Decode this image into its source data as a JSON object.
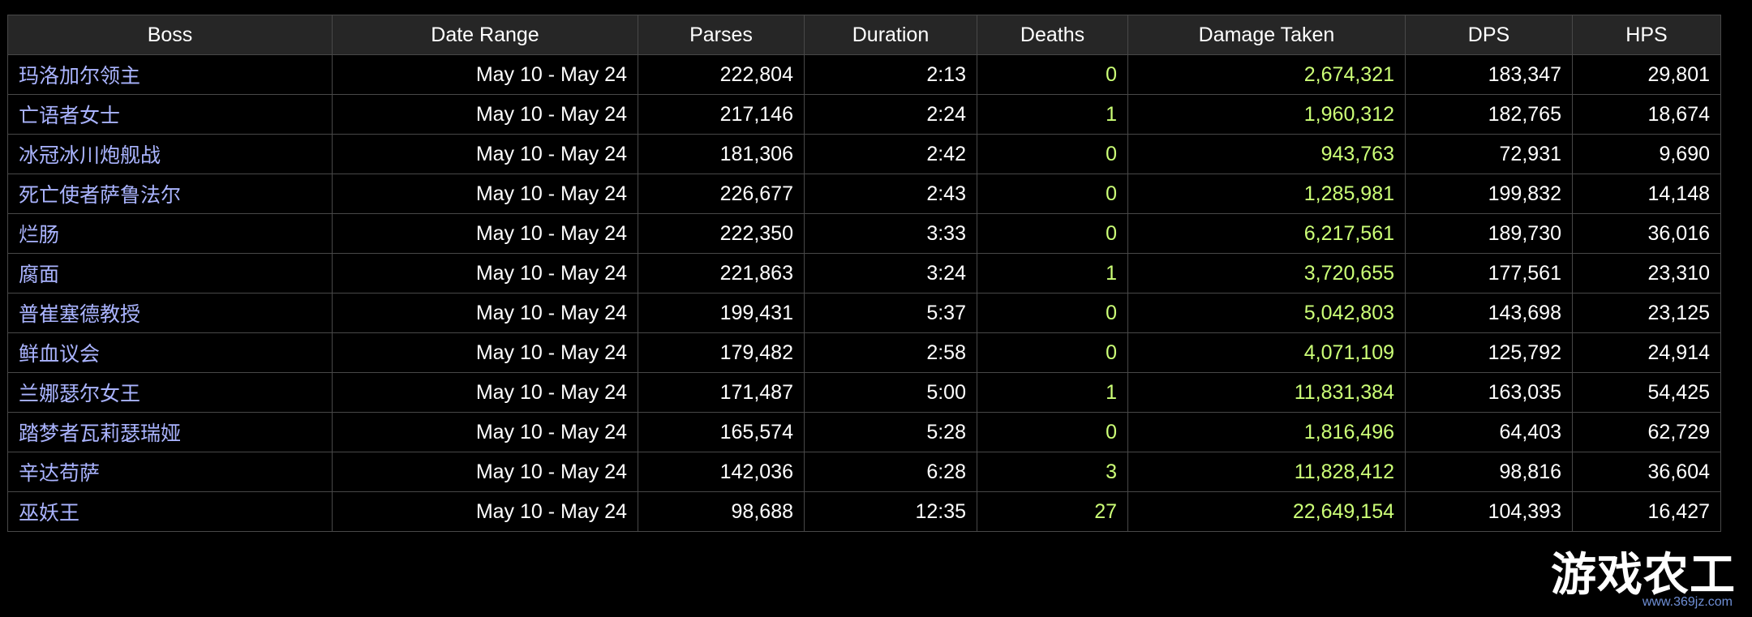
{
  "table": {
    "headers": [
      "Boss",
      "Date Range",
      "Parses",
      "Duration",
      "Deaths",
      "Damage Taken",
      "DPS",
      "HPS"
    ],
    "rows": [
      {
        "boss": "玛洛加尔领主",
        "date_range": "May 10 - May 24",
        "parses": "222,804",
        "duration": "2:13",
        "deaths": "0",
        "damage_taken": "2,674,321",
        "dps": "183,347",
        "hps": "29,801"
      },
      {
        "boss": "亡语者女士",
        "date_range": "May 10 - May 24",
        "parses": "217,146",
        "duration": "2:24",
        "deaths": "1",
        "damage_taken": "1,960,312",
        "dps": "182,765",
        "hps": "18,674"
      },
      {
        "boss": "冰冠冰川炮舰战",
        "date_range": "May 10 - May 24",
        "parses": "181,306",
        "duration": "2:42",
        "deaths": "0",
        "damage_taken": "943,763",
        "dps": "72,931",
        "hps": "9,690"
      },
      {
        "boss": "死亡使者萨鲁法尔",
        "date_range": "May 10 - May 24",
        "parses": "226,677",
        "duration": "2:43",
        "deaths": "0",
        "damage_taken": "1,285,981",
        "dps": "199,832",
        "hps": "14,148"
      },
      {
        "boss": "烂肠",
        "date_range": "May 10 - May 24",
        "parses": "222,350",
        "duration": "3:33",
        "deaths": "0",
        "damage_taken": "6,217,561",
        "dps": "189,730",
        "hps": "36,016"
      },
      {
        "boss": "腐面",
        "date_range": "May 10 - May 24",
        "parses": "221,863",
        "duration": "3:24",
        "deaths": "1",
        "damage_taken": "3,720,655",
        "dps": "177,561",
        "hps": "23,310"
      },
      {
        "boss": "普崔塞德教授",
        "date_range": "May 10 - May 24",
        "parses": "199,431",
        "duration": "5:37",
        "deaths": "0",
        "damage_taken": "5,042,803",
        "dps": "143,698",
        "hps": "23,125"
      },
      {
        "boss": "鲜血议会",
        "date_range": "May 10 - May 24",
        "parses": "179,482",
        "duration": "2:58",
        "deaths": "0",
        "damage_taken": "4,071,109",
        "dps": "125,792",
        "hps": "24,914"
      },
      {
        "boss": "兰娜瑟尔女王",
        "date_range": "May 10 - May 24",
        "parses": "171,487",
        "duration": "5:00",
        "deaths": "1",
        "damage_taken": "11,831,384",
        "dps": "163,035",
        "hps": "54,425"
      },
      {
        "boss": "踏梦者瓦莉瑟瑞娅",
        "date_range": "May 10 - May 24",
        "parses": "165,574",
        "duration": "5:28",
        "deaths": "0",
        "damage_taken": "1,816,496",
        "dps": "64,403",
        "hps": "62,729"
      },
      {
        "boss": "辛达苟萨",
        "date_range": "May 10 - May 24",
        "parses": "142,036",
        "duration": "6:28",
        "deaths": "3",
        "damage_taken": "11,828,412",
        "dps": "98,816",
        "hps": "36,604"
      },
      {
        "boss": "巫妖王",
        "date_range": "May 10 - May 24",
        "parses": "98,688",
        "duration": "12:35",
        "deaths": "27",
        "damage_taken": "22,649,154",
        "dps": "104,393",
        "hps": "16,427"
      }
    ]
  },
  "watermark": {
    "title": "游戏农工",
    "url": "www.369jz.com"
  },
  "colors": {
    "background": "#000000",
    "header_background": "#262626",
    "grid": "#484848",
    "boss_link": "#aab4ff",
    "highlight_green": "#ccff77",
    "text": "#ffffff"
  }
}
